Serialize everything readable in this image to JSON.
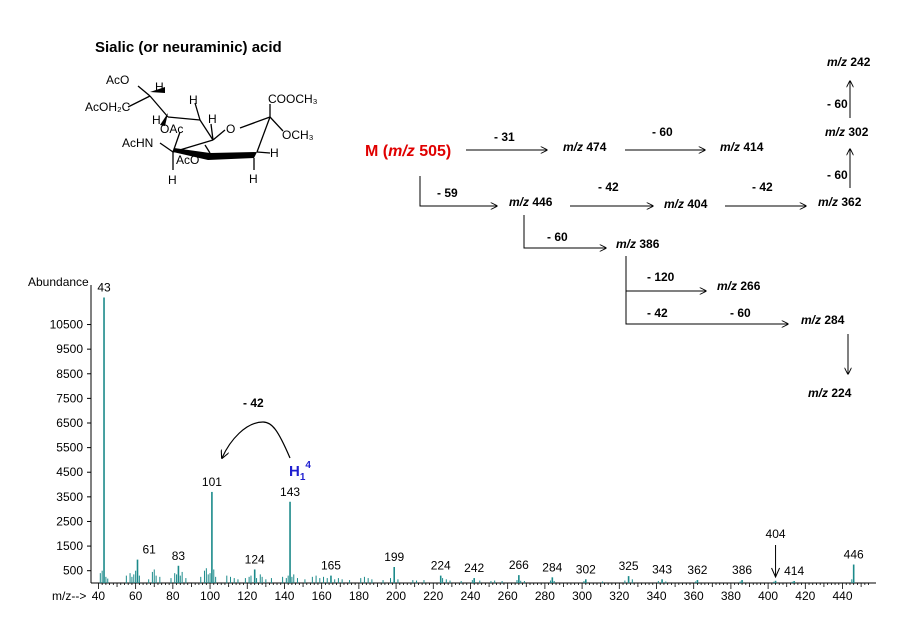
{
  "title": "Sialic (or neuraminic) acid",
  "structure": {
    "labels": [
      "AcO",
      "H",
      "AcOH₂C",
      "H",
      "H",
      "COOCH₃",
      "H",
      "OAc",
      "O",
      "OCH₃",
      "AcHN",
      "AcO",
      "H",
      "H",
      "H"
    ]
  },
  "scheme": {
    "parent_prefix": "M (",
    "parent_mz": "m/z",
    "parent_value": "505)",
    "nodes": [
      {
        "id": "n474",
        "italic": "m/z",
        "value": "474"
      },
      {
        "id": "n414",
        "italic": "m/z",
        "value": "414"
      },
      {
        "id": "n446",
        "italic": "m/z",
        "value": "446"
      },
      {
        "id": "n404",
        "italic": "m/z",
        "value": "404"
      },
      {
        "id": "n362",
        "italic": "m/z",
        "value": "362"
      },
      {
        "id": "n302",
        "italic": "m/z",
        "value": "302"
      },
      {
        "id": "n242",
        "italic": "m/z",
        "value": "242"
      },
      {
        "id": "n386",
        "italic": "m/z",
        "value": "386"
      },
      {
        "id": "n266",
        "italic": "m/z",
        "value": "266"
      },
      {
        "id": "n284",
        "italic": "m/z",
        "value": "284"
      },
      {
        "id": "n224",
        "italic": "m/z",
        "value": "224"
      }
    ],
    "losses": [
      "- 31",
      "- 60",
      "- 59",
      "- 42",
      "- 42",
      "- 60",
      "- 60",
      "- 60",
      "- 120",
      "- 42",
      "- 60"
    ]
  },
  "annotation": {
    "loss_label": "- 42",
    "ion_label": "H",
    "ion_sub": "1",
    "ion_sup": "4",
    "ion_color": "#1f1fd0"
  },
  "colors": {
    "bar": "#1b8a8a",
    "parent": "#e00000",
    "axis": "#000000"
  },
  "chart_data": {
    "type": "bar",
    "ylabel": "Abundance",
    "xlabel": "m/z-->",
    "xlim": [
      36,
      458
    ],
    "ylim": [
      0,
      11700
    ],
    "yticks": [
      500,
      1500,
      2500,
      3500,
      4500,
      5500,
      6500,
      7500,
      8500,
      9500,
      10500
    ],
    "xticks": [
      40,
      60,
      80,
      100,
      120,
      140,
      160,
      180,
      200,
      220,
      240,
      260,
      280,
      300,
      320,
      340,
      360,
      380,
      400,
      420,
      440
    ],
    "peaks": [
      {
        "x": 43,
        "y": 11600,
        "label": "43"
      },
      {
        "x": 101,
        "y": 3700,
        "label": "101"
      },
      {
        "x": 143,
        "y": 3300,
        "label": "143"
      },
      {
        "x": 61,
        "y": 950,
        "label": "61"
      },
      {
        "x": 83,
        "y": 700,
        "label": "83"
      },
      {
        "x": 124,
        "y": 550,
        "label": "124"
      },
      {
        "x": 165,
        "y": 300,
        "label": "165"
      },
      {
        "x": 199,
        "y": 650,
        "label": "199"
      },
      {
        "x": 224,
        "y": 300,
        "label": "224"
      },
      {
        "x": 242,
        "y": 200,
        "label": "242"
      },
      {
        "x": 266,
        "y": 320,
        "label": "266"
      },
      {
        "x": 284,
        "y": 230,
        "label": "284"
      },
      {
        "x": 302,
        "y": 150,
        "label": "302"
      },
      {
        "x": 325,
        "y": 280,
        "label": "325"
      },
      {
        "x": 343,
        "y": 150,
        "label": "343"
      },
      {
        "x": 362,
        "y": 120,
        "label": "362"
      },
      {
        "x": 386,
        "y": 120,
        "label": "386"
      },
      {
        "x": 404,
        "y": 90,
        "label": "404"
      },
      {
        "x": 414,
        "y": 80,
        "label": "414"
      },
      {
        "x": 446,
        "y": 750,
        "label": "446"
      }
    ],
    "minor_peaks": [
      [
        41,
        400
      ],
      [
        42,
        500
      ],
      [
        44,
        250
      ],
      [
        45,
        180
      ],
      [
        55,
        300
      ],
      [
        57,
        400
      ],
      [
        58,
        250
      ],
      [
        59,
        350
      ],
      [
        60,
        500
      ],
      [
        62,
        300
      ],
      [
        67,
        150
      ],
      [
        69,
        450
      ],
      [
        70,
        550
      ],
      [
        71,
        300
      ],
      [
        73,
        250
      ],
      [
        79,
        200
      ],
      [
        81,
        400
      ],
      [
        82,
        350
      ],
      [
        84,
        300
      ],
      [
        85,
        450
      ],
      [
        87,
        200
      ],
      [
        95,
        250
      ],
      [
        97,
        500
      ],
      [
        98,
        600
      ],
      [
        99,
        350
      ],
      [
        100,
        400
      ],
      [
        102,
        550
      ],
      [
        103,
        250
      ],
      [
        109,
        300
      ],
      [
        111,
        250
      ],
      [
        113,
        200
      ],
      [
        115,
        150
      ],
      [
        119,
        200
      ],
      [
        121,
        250
      ],
      [
        122,
        300
      ],
      [
        125,
        200
      ],
      [
        127,
        350
      ],
      [
        128,
        250
      ],
      [
        130,
        150
      ],
      [
        133,
        200
      ],
      [
        139,
        250
      ],
      [
        141,
        200
      ],
      [
        142,
        300
      ],
      [
        144,
        250
      ],
      [
        145,
        350
      ],
      [
        147,
        200
      ],
      [
        151,
        150
      ],
      [
        155,
        250
      ],
      [
        157,
        300
      ],
      [
        159,
        200
      ],
      [
        161,
        250
      ],
      [
        163,
        200
      ],
      [
        167,
        150
      ],
      [
        169,
        200
      ],
      [
        171,
        150
      ],
      [
        175,
        120
      ],
      [
        181,
        200
      ],
      [
        183,
        250
      ],
      [
        185,
        200
      ],
      [
        187,
        150
      ],
      [
        193,
        120
      ],
      [
        197,
        200
      ],
      [
        201,
        150
      ],
      [
        209,
        120
      ],
      [
        211,
        100
      ],
      [
        215,
        120
      ],
      [
        225,
        200
      ],
      [
        227,
        150
      ],
      [
        229,
        100
      ],
      [
        235,
        80
      ],
      [
        241,
        120
      ],
      [
        245,
        100
      ],
      [
        251,
        80
      ],
      [
        253,
        100
      ],
      [
        257,
        80
      ],
      [
        265,
        120
      ],
      [
        267,
        90
      ],
      [
        269,
        80
      ],
      [
        283,
        100
      ],
      [
        285,
        80
      ],
      [
        301,
        80
      ],
      [
        311,
        60
      ],
      [
        323,
        100
      ],
      [
        327,
        150
      ],
      [
        341,
        80
      ],
      [
        345,
        60
      ],
      [
        361,
        60
      ],
      [
        385,
        60
      ],
      [
        403,
        50
      ],
      [
        413,
        50
      ],
      [
        445,
        150
      ]
    ]
  }
}
